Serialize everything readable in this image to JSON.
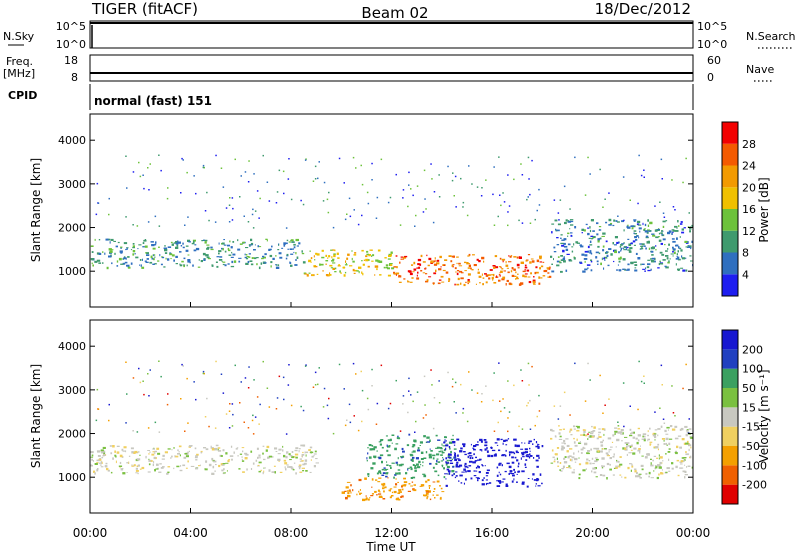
{
  "header": {
    "radar": "TIGER (fitACF)",
    "beam": "Beam 02",
    "date": "18/Dec/2012"
  },
  "sky_panel": {
    "left_label": "N.Sky",
    "left_ticks": [
      "10^5",
      "10^0"
    ],
    "right_label": "N.Search",
    "right_ticks": [
      "10^5",
      "10^0"
    ]
  },
  "freq_panel": {
    "left_label_line1": "Freq.",
    "left_label_line2": "[MHz]",
    "left_ticks": [
      "18",
      "8"
    ],
    "right_label": "Nave",
    "right_ticks": [
      "60",
      "0"
    ]
  },
  "cpid_panel": {
    "label": "CPID",
    "program": "normal (fast) 151"
  },
  "colors": {
    "power": [
      "#1e1ef0",
      "#2f6fbf",
      "#3f9a6e",
      "#6cc23a",
      "#f0c000",
      "#f39a00",
      "#f45a00",
      "#f20000"
    ],
    "velocity": [
      "#e00000",
      "#f06000",
      "#f4a000",
      "#f0d060",
      "#c8c8c0",
      "#7ac040",
      "#3aa060",
      "#2040c0",
      "#1818d0"
    ]
  },
  "chart_data": [
    {
      "type": "heatmap",
      "name": "power",
      "ylabel": "Slant Range [km]",
      "ylim": [
        180,
        4600
      ],
      "yticks": [
        1000,
        2000,
        3000,
        4000
      ],
      "xlim": [
        0,
        24
      ],
      "x": [
        0,
        4,
        8,
        12,
        16,
        20,
        24
      ],
      "colorbar": {
        "label": "Power [dB]",
        "ticks": [
          4,
          8,
          12,
          16,
          20,
          24,
          28
        ],
        "range": [
          0,
          32
        ]
      },
      "features": [
        {
          "t0": 0.0,
          "t1": 8.5,
          "r0": 1100,
          "r1": 1750,
          "level": 9
        },
        {
          "t0": 8.5,
          "t1": 12.0,
          "r0": 900,
          "r1": 1500,
          "level": 17
        },
        {
          "t0": 12.0,
          "t1": 18.3,
          "r0": 700,
          "r1": 1400,
          "level": 25
        },
        {
          "t0": 18.3,
          "t1": 24.0,
          "r0": 1000,
          "r1": 2200,
          "level": 8
        }
      ]
    },
    {
      "type": "heatmap",
      "name": "velocity",
      "ylabel": "Slant Range [km]",
      "ylim": [
        180,
        4600
      ],
      "yticks": [
        1000,
        2000,
        3000,
        4000
      ],
      "xlim": [
        0,
        24
      ],
      "x": [
        0,
        4,
        8,
        12,
        16,
        20,
        24
      ],
      "xticklabels": [
        "00:00",
        "04:00",
        "08:00",
        "12:00",
        "16:00",
        "20:00",
        "00:00"
      ],
      "xlabel": "Time UT",
      "colorbar": {
        "label": "Velocity [m s⁻¹]",
        "ticks": [
          200,
          100,
          50,
          15,
          -15,
          -50,
          -100,
          -200
        ]
      },
      "features": [
        {
          "t0": 0.0,
          "t1": 9.0,
          "r0": 1100,
          "r1": 1750,
          "velocity": 0
        },
        {
          "t0": 10.0,
          "t1": 14.0,
          "r0": 500,
          "r1": 1000,
          "velocity": -60
        },
        {
          "t0": 11.0,
          "t1": 14.5,
          "r0": 1000,
          "r1": 2000,
          "velocity": 60
        },
        {
          "t0": 14.0,
          "t1": 18.0,
          "r0": 800,
          "r1": 1900,
          "velocity": 180
        },
        {
          "t0": 18.3,
          "t1": 24.0,
          "r0": 1000,
          "r1": 2200,
          "velocity": 0
        }
      ]
    }
  ]
}
